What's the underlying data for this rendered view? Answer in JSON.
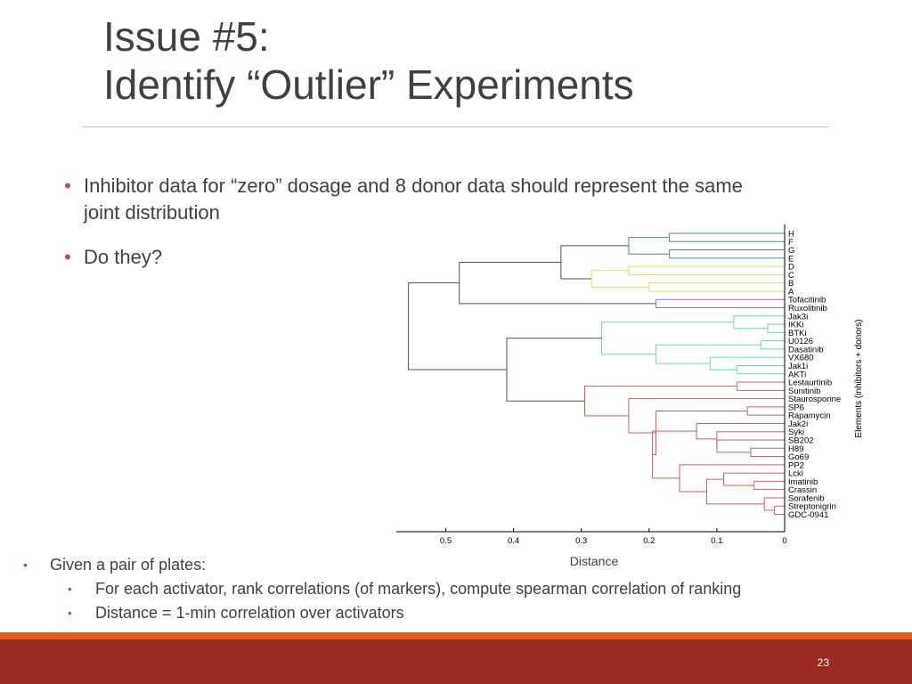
{
  "slide": {
    "title_line1": "Issue #5:",
    "title_line2": "Identify “Outlier” Experiments",
    "bullets": [
      "Inhibitor data for “zero” dosage and 8 donor data should represent the same joint distribution",
      "Do they?"
    ],
    "lower_bullets": [
      "Given a pair of plates:",
      "For each activator, rank correlations (of markers), compute spearman correlation of ranking",
      "Distance = 1-min correlation over activators"
    ],
    "page_number": "23"
  },
  "colors": {
    "accent": "#c0504d",
    "footer_bar": "#9c2a21",
    "footer_stripe": "#e05b1c",
    "cluster_blue": "#4f81bd",
    "cluster_yellow": "#d8e85a",
    "cluster_purple": "#b65bd8",
    "cluster_green": "#62e0a4",
    "cluster_red": "#e05a5a",
    "link_gray": "#505050"
  },
  "chart_data": {
    "type": "dendrogram",
    "xlabel": "Distance",
    "ylabel": "Elements (inhibitors + donors)",
    "xlim": [
      0.57,
      0
    ],
    "xticks": [
      "0.5",
      "0.4",
      "0.3",
      "0.2",
      "0.1",
      "0"
    ],
    "leaves": [
      "H",
      "F",
      "G",
      "E",
      "D",
      "C",
      "B",
      "A",
      "Tofacitinib",
      "Ruxolitinib",
      "Jak3i",
      "IKKi",
      "BTKi",
      "U0126",
      "Dasatinib",
      "VX680",
      "Jak1i",
      "AKTi",
      "Lestaurtinib",
      "Sunitinib",
      "Staurosporine",
      "SP6",
      "Rapamycin",
      "Jak2i",
      "Syki",
      "SB202",
      "H89",
      "Go69",
      "PP2",
      "Lcki",
      "Imatinib",
      "Crassin",
      "Sorafenib",
      "Streptonigrin",
      "GDC-0941"
    ],
    "merges": [
      [
        "H",
        "F",
        0.17,
        "blue"
      ],
      [
        "G",
        "E",
        0.17,
        "blue"
      ],
      [
        "m0",
        "m1",
        0.23,
        "blue"
      ],
      [
        "D",
        "C",
        0.23,
        "yellow"
      ],
      [
        "B",
        "A",
        0.2,
        "yellow"
      ],
      [
        "m3",
        "m4",
        0.285,
        "yellow"
      ],
      [
        "m2",
        "m5",
        0.33,
        "gray"
      ],
      [
        "Tofacitinib",
        "Ruxolitinib",
        0.19,
        "purple"
      ],
      [
        "m6",
        "m7",
        0.48,
        "gray"
      ],
      [
        "IKKi",
        "BTKi",
        0.025,
        "green"
      ],
      [
        "Jak3i",
        "m9",
        0.075,
        "green"
      ],
      [
        "U0126",
        "Dasatinib",
        0.035,
        "green"
      ],
      [
        "Jak1i",
        "AKTi",
        0.07,
        "green"
      ],
      [
        "VX680",
        "m12",
        0.11,
        "green"
      ],
      [
        "m11",
        "m13",
        0.19,
        "green"
      ],
      [
        "m10",
        "m14",
        0.27,
        "green"
      ],
      [
        "Lestaurtinib",
        "Sunitinib",
        0.07,
        "red"
      ],
      [
        "SP6",
        "Rapamycin",
        0.055,
        "red"
      ],
      [
        "H89",
        "Go69",
        0.05,
        "red"
      ],
      [
        "SB202",
        "m18",
        0.1,
        "red"
      ],
      [
        "Syki",
        "m19",
        0.1,
        "red"
      ],
      [
        "Jak2i",
        "m20",
        0.13,
        "red"
      ],
      [
        "Imatinib",
        "Crassin",
        0.045,
        "red"
      ],
      [
        "Lcki",
        "m22",
        0.09,
        "red"
      ],
      [
        "Streptonigrin",
        "GDC-0941",
        0.015,
        "red"
      ],
      [
        "Sorafenib",
        "m24",
        0.03,
        "red"
      ],
      [
        "m23",
        "m25",
        0.115,
        "red"
      ],
      [
        "PP2",
        "m26",
        0.155,
        "red"
      ],
      [
        "m21",
        "m27",
        0.195,
        "red"
      ],
      [
        "m17",
        "m28",
        0.19,
        "red"
      ],
      [
        "Staurosporine",
        "m29",
        0.23,
        "red"
      ],
      [
        "m16",
        "m30",
        0.295,
        "red"
      ],
      [
        "m15",
        "m31",
        0.41,
        "gray"
      ],
      [
        "m8",
        "m32",
        0.555,
        "gray"
      ]
    ]
  }
}
